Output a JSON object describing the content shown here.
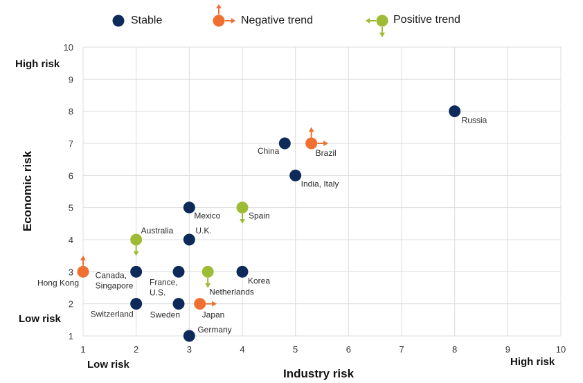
{
  "colors": {
    "stable": "#0e2a5a",
    "negative": "#f07032",
    "positive": "#9dbb35",
    "grid": "#dcdcdc"
  },
  "legend": {
    "stable": "Stable",
    "negative": "Negative trend",
    "positive": "Positive trend"
  },
  "corner_labels": {
    "y_high": "High risk",
    "y_low": "Low risk",
    "x_low": "Low risk",
    "x_high": "High risk"
  },
  "chart_data": {
    "type": "scatter",
    "xlabel": "Industry risk",
    "ylabel": "Economic risk",
    "xlim": [
      1,
      10
    ],
    "ylim": [
      1,
      10
    ],
    "xticks": [
      1,
      2,
      3,
      4,
      5,
      6,
      7,
      8,
      9,
      10
    ],
    "yticks": [
      1,
      2,
      3,
      4,
      5,
      6,
      7,
      8,
      9,
      10
    ],
    "grid": true,
    "legend_position": "top",
    "series": [
      {
        "name": "Stable",
        "points": [
          {
            "label": "Russia",
            "x": 8,
            "y": 8
          },
          {
            "label": "China",
            "x": 4.8,
            "y": 7
          },
          {
            "label": "India, Italy",
            "x": 5,
            "y": 6
          },
          {
            "label": "Mexico",
            "x": 3,
            "y": 5
          },
          {
            "label": "U.K.",
            "x": 3,
            "y": 4
          },
          {
            "label": "Canada,\nSingapore",
            "x": 2,
            "y": 3
          },
          {
            "label": "France,\nU.S.",
            "x": 2.8,
            "y": 3
          },
          {
            "label": "Korea",
            "x": 4,
            "y": 3
          },
          {
            "label": "Switzerland",
            "x": 2,
            "y": 2
          },
          {
            "label": "Sweden",
            "x": 2.8,
            "y": 2
          },
          {
            "label": "Germany",
            "x": 3,
            "y": 1
          }
        ]
      },
      {
        "name": "Negative trend",
        "points": [
          {
            "label": "Brazil",
            "x": 5.3,
            "y": 7,
            "arrows": [
              "up",
              "right"
            ]
          },
          {
            "label": "Hong Kong",
            "x": 1,
            "y": 3,
            "arrows": [
              "up"
            ]
          },
          {
            "label": "Japan",
            "x": 3.2,
            "y": 2,
            "arrows": [
              "right"
            ]
          }
        ]
      },
      {
        "name": "Positive trend",
        "points": [
          {
            "label": "Spain",
            "x": 4,
            "y": 5,
            "arrows": [
              "down"
            ]
          },
          {
            "label": "Australia",
            "x": 2,
            "y": 4,
            "arrows": [
              "down"
            ]
          },
          {
            "label": "Netherlands",
            "x": 3.35,
            "y": 3,
            "arrows": [
              "down"
            ]
          }
        ]
      }
    ]
  }
}
